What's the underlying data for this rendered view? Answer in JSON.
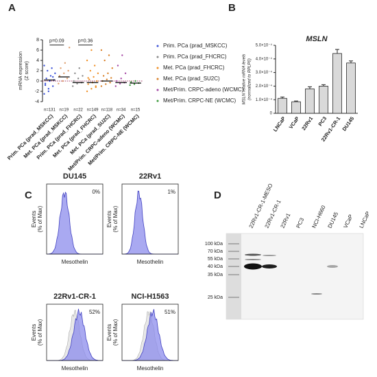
{
  "panel_letters": [
    "A",
    "B",
    "C",
    "D"
  ],
  "chart_data": [
    {
      "type": "strip",
      "y_label": [
        "mRNA expression",
        "(Z score)"
      ],
      "categories": [
        "Prim. PCa (prad_MSKCC)",
        "Met. PCa (prad_MSKCC)",
        "Prim. PCa (prad_FHCRC)",
        "Met. PCa (prad_FHCRC)",
        "Met. PCa (prad_SU2C)",
        "Met/Prim. CRPC-adeno (WCMC)",
        "Met/Prim. CRPC-NE (WCMC)"
      ],
      "n_labels": [
        "n=131",
        "n=19",
        "n=22",
        "n=149",
        "n=118",
        "n=34",
        "n=15"
      ],
      "colors": [
        "#3f55d8",
        "#e0a070",
        "#8a8a8a",
        "#f0922a",
        "#d9822b",
        "#a64aa6",
        "#3c9a3c"
      ],
      "medians": [
        0.2,
        0.8,
        -0.3,
        -0.3,
        0,
        -0.3,
        -0.4
      ],
      "points": [
        [
          -2.5,
          -1.5,
          -1,
          -0.5,
          0,
          0.2,
          0.5,
          1,
          1.5,
          2,
          2.5,
          3,
          -2,
          0.8,
          -0.8
        ],
        [
          -0.5,
          0,
          0.5,
          1,
          1.5,
          2,
          2.5,
          3.5,
          6.5
        ],
        [
          -1,
          -0.5,
          -0.3,
          0,
          0.5,
          1,
          1.5,
          2.5
        ],
        [
          -2,
          -1.5,
          -1,
          -0.6,
          -0.3,
          0,
          0.3,
          0.8,
          1.5,
          2,
          3,
          4,
          6,
          -1.2,
          0.6
        ],
        [
          -1,
          -0.6,
          -0.3,
          0,
          0.3,
          0.6,
          1,
          1.5,
          2.5,
          4,
          5,
          6
        ],
        [
          -1,
          -0.5,
          -0.3,
          0,
          0.5,
          1.5,
          3,
          5
        ],
        [
          -0.8,
          -0.6,
          -0.4,
          -0.2,
          0
        ]
      ],
      "annotations": [
        "p=0.09",
        "p=0.36"
      ],
      "hline": 0,
      "ylim": [
        -4,
        8
      ],
      "yticks": [
        -4,
        -2,
        0,
        2,
        4,
        6,
        8
      ],
      "legend": [
        {
          "name": "Prim. PCa (prad_MSKCC)",
          "color": "#3f55d8"
        },
        {
          "name": "Prim. PCa (prad_FHCRC)",
          "color": "#8a8a8a"
        },
        {
          "name": "Met. PCa (prad_FHCRC)",
          "color": "#f0922a"
        },
        {
          "name": "Met. PCa (prad_SU2C)",
          "color": "#d9822b"
        },
        {
          "name": "Met/Prim. CRPC-adeno (WCMC)",
          "color": "#a64aa6"
        },
        {
          "name": "Met/Prim. CRPC-NE (WCMC)",
          "color": "#3c9a3c"
        }
      ]
    },
    {
      "type": "bar",
      "title": "MSLN",
      "y_label": [
        "MSLN relative mRNA levels",
        "(normalized to RPLP0)"
      ],
      "categories": [
        "LNCaP",
        "VCaP",
        "22Rv1",
        "PC3",
        "22Rv1-CR-1",
        "DU145"
      ],
      "values": [
        0.00011,
        8.5e-05,
        0.00018,
        0.0002,
        0.00044,
        0.00037
      ],
      "errors": [
        1e-05,
        5e-06,
        1.5e-05,
        1e-05,
        3e-05,
        1.5e-05
      ],
      "color": "#d9d9d9",
      "ylim": [
        0,
        0.0005
      ],
      "yticks": [
        0,
        {
          "value": 0.0001,
          "label": "1.0×10⁻⁴"
        },
        {
          "value": 0.0002,
          "label": "2.0×10⁻⁴"
        },
        {
          "value": 0.0003,
          "label": "3.0×10⁻⁴"
        },
        {
          "value": 0.0004,
          "label": "4.0×10⁻⁴"
        },
        {
          "value": 0.0005,
          "label": "5.0×10⁻⁴"
        }
      ]
    }
  ],
  "flow": {
    "x_label": "Mesothelin",
    "y_label": [
      "Events",
      "(% of Max)"
    ],
    "panels": [
      {
        "title": "DU145",
        "percent": "0%"
      },
      {
        "title": "22Rv1",
        "percent": "1%"
      },
      {
        "title": "22Rv1-CR-1",
        "percent": "52%"
      },
      {
        "title": "NCI-H1563",
        "percent": "51%"
      }
    ]
  },
  "blot": {
    "markers": [
      "100 kDa",
      "70 kDa",
      "55 kDa",
      "40 kDa",
      "35 kDa",
      "25 kDa"
    ],
    "lanes": [
      "22Rv1-CR-1-MESO",
      "22Rv1-CR-1",
      "22Rv1",
      "PC3",
      "NCI-H660",
      "DU145",
      "VCaP",
      "LNCaP"
    ]
  }
}
